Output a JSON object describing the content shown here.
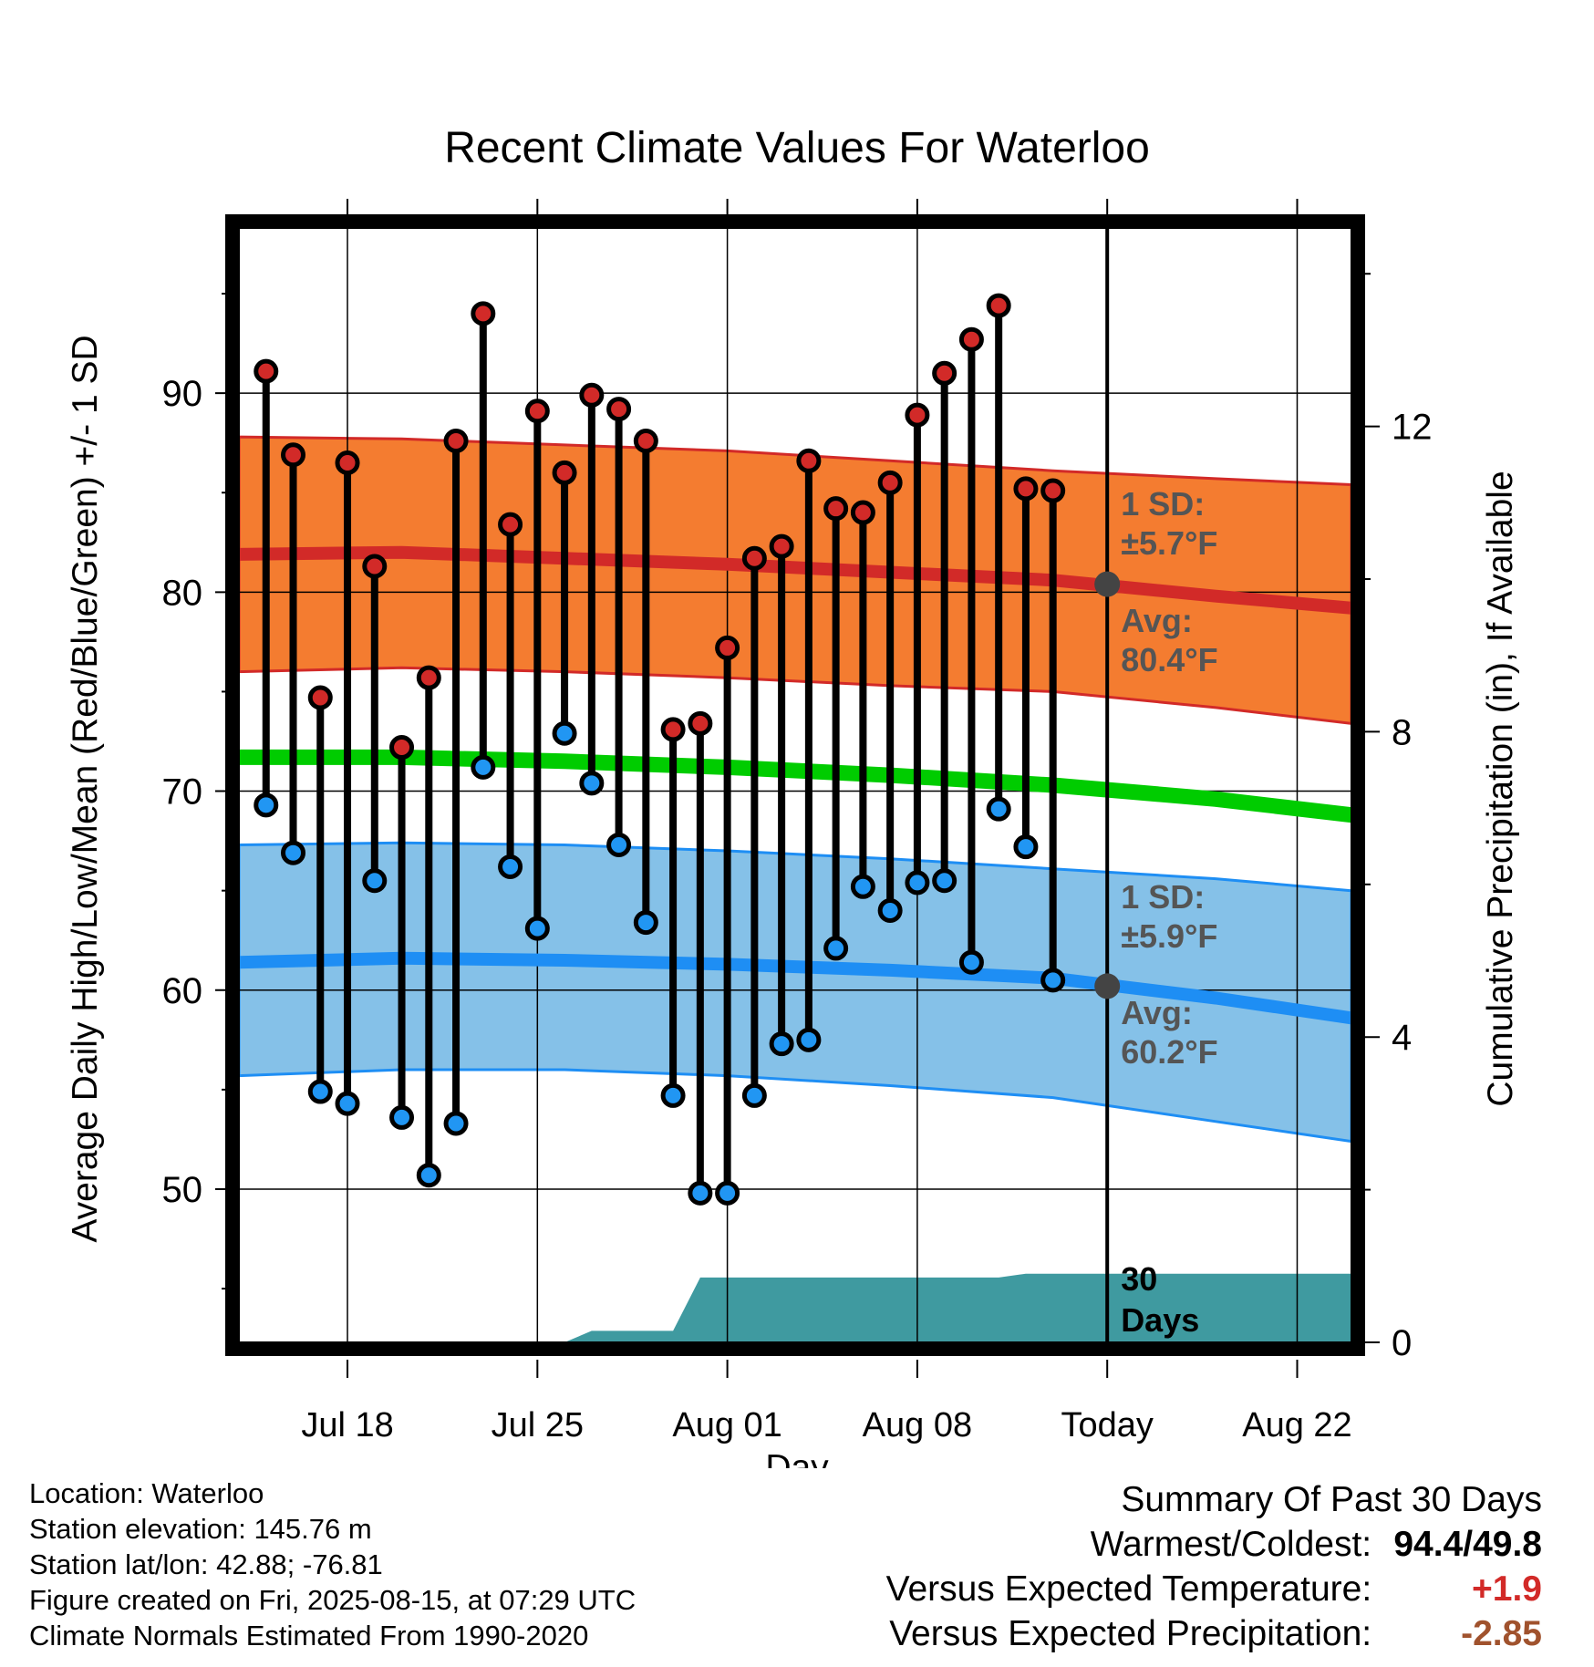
{
  "chart_data": {
    "type": "line",
    "title": "Recent Climate Values For Waterloo",
    "xlabel": "Day",
    "ylabel": "Average Daily High/Low/Mean (Red/Blue/Green) +/- 1 SD",
    "ylabel_right": "Cumulative Precipitation (in), If Available",
    "ylim": [
      42.3,
      98.3
    ],
    "ylim_right": [
      0,
      14.6
    ],
    "xlim": [
      "2025-07-14",
      "2025-08-24"
    ],
    "x_ticks": [
      {
        "date": "2025-07-18",
        "label": "Jul 18"
      },
      {
        "date": "2025-07-25",
        "label": "Jul 25"
      },
      {
        "date": "2025-08-01",
        "label": "Aug 01"
      },
      {
        "date": "2025-08-08",
        "label": "Aug 08"
      },
      {
        "date": "2025-08-15",
        "label": "Today"
      },
      {
        "date": "2025-08-22",
        "label": "Aug 22"
      }
    ],
    "y_ticks": [
      50,
      60,
      70,
      80,
      90
    ],
    "y_ticks_right": [
      0,
      4,
      8,
      12
    ],
    "grid": true,
    "colors": {
      "high_band": "#f47c30",
      "high_line": "#d22a28",
      "low_band": "#85c1e8",
      "low_line": "#1e8ef4",
      "mean_line": "#00cc00",
      "precip": "#3f9aa0",
      "high_dot": "#d22a28",
      "low_dot": "#2196f3",
      "today_dot": "#444444",
      "annotation": "#555555",
      "warm_value": "#d22a28",
      "precip_value": "#a0522d"
    },
    "normals": {
      "dates": [
        "2025-07-14",
        "2025-07-20",
        "2025-07-26",
        "2025-08-01",
        "2025-08-07",
        "2025-08-13",
        "2025-08-19",
        "2025-08-24"
      ],
      "high_mean": [
        81.9,
        82.0,
        81.7,
        81.4,
        81.0,
        80.6,
        79.8,
        79.2
      ],
      "high_upper": [
        87.8,
        87.7,
        87.4,
        87.1,
        86.6,
        86.1,
        85.7,
        85.4
      ],
      "high_lower": [
        76.0,
        76.2,
        76.0,
        75.7,
        75.3,
        75.0,
        74.2,
        73.4
      ],
      "avg_mean": [
        71.7,
        71.7,
        71.5,
        71.2,
        70.8,
        70.3,
        69.6,
        68.8
      ],
      "low_mean": [
        61.4,
        61.6,
        61.5,
        61.3,
        61.0,
        60.6,
        59.6,
        58.6
      ],
      "low_upper": [
        67.3,
        67.4,
        67.3,
        67.0,
        66.6,
        66.1,
        65.6,
        65.0
      ],
      "low_lower": [
        55.7,
        56.0,
        56.0,
        55.7,
        55.2,
        54.6,
        53.4,
        52.4
      ]
    },
    "series": [
      {
        "name": "High",
        "x": [
          "2025-07-15",
          "2025-07-16",
          "2025-07-17",
          "2025-07-18",
          "2025-07-19",
          "2025-07-20",
          "2025-07-21",
          "2025-07-22",
          "2025-07-23",
          "2025-07-24",
          "2025-07-25",
          "2025-07-26",
          "2025-07-27",
          "2025-07-28",
          "2025-07-29",
          "2025-07-30",
          "2025-07-31",
          "2025-08-01",
          "2025-08-02",
          "2025-08-03",
          "2025-08-04",
          "2025-08-05",
          "2025-08-06",
          "2025-08-07",
          "2025-08-08",
          "2025-08-09",
          "2025-08-10",
          "2025-08-11",
          "2025-08-12",
          "2025-08-13",
          "2025-08-14"
        ],
        "values": [
          91.1,
          86.9,
          74.7,
          86.5,
          81.3,
          72.2,
          75.7,
          87.6,
          94.0,
          83.4,
          89.1,
          86.0,
          89.9,
          89.2,
          87.6,
          73.1,
          73.4,
          77.2,
          81.7,
          82.3,
          86.6,
          84.2,
          84.0,
          85.5,
          88.9,
          91.0,
          92.7,
          94.4,
          85.2,
          85.1,
          null
        ]
      },
      {
        "name": "Low",
        "x": [
          "2025-07-15",
          "2025-07-16",
          "2025-07-17",
          "2025-07-18",
          "2025-07-19",
          "2025-07-20",
          "2025-07-21",
          "2025-07-22",
          "2025-07-23",
          "2025-07-24",
          "2025-07-25",
          "2025-07-26",
          "2025-07-27",
          "2025-07-28",
          "2025-07-29",
          "2025-07-30",
          "2025-07-31",
          "2025-08-01",
          "2025-08-02",
          "2025-08-03",
          "2025-08-04",
          "2025-08-05",
          "2025-08-06",
          "2025-08-07",
          "2025-08-08",
          "2025-08-09",
          "2025-08-10",
          "2025-08-11",
          "2025-08-12",
          "2025-08-13",
          "2025-08-14"
        ],
        "values": [
          69.3,
          66.9,
          54.9,
          54.3,
          65.5,
          53.6,
          50.7,
          53.3,
          71.2,
          66.2,
          63.1,
          72.9,
          70.4,
          67.3,
          63.4,
          54.7,
          49.8,
          49.8,
          54.7,
          57.3,
          57.5,
          62.1,
          65.2,
          64.0,
          65.4,
          65.5,
          61.4,
          69.1,
          67.2,
          60.5,
          null
        ]
      },
      {
        "name": "Cumulative Precipitation",
        "x": [
          "2025-07-15",
          "2025-07-24",
          "2025-07-26",
          "2025-07-27",
          "2025-07-30",
          "2025-07-31",
          "2025-08-01",
          "2025-08-11",
          "2025-08-12",
          "2025-08-24"
        ],
        "values": [
          0,
          0,
          0.0,
          0.15,
          0.15,
          0.85,
          0.85,
          0.85,
          0.9,
          0.9
        ]
      }
    ],
    "annotations": [
      {
        "line1": "1 SD:",
        "line2": "±5.7°F"
      },
      {
        "line1": "Avg:",
        "line2": "80.4°F",
        "value": 80.4
      },
      {
        "line1": "1 SD:",
        "line2": "±5.9°F"
      },
      {
        "line1": "Avg:",
        "line2": "60.2°F",
        "value": 60.2
      },
      {
        "line1": "30",
        "line2": "Days"
      }
    ],
    "today": "2025-08-15"
  },
  "footer": {
    "location": "Location: Waterloo",
    "elevation": "Station elevation: 145.76 m",
    "latlon": "Station lat/lon: 42.88; -76.81",
    "created": "Figure created on Fri, 2025-08-15, at 07:29 UTC",
    "normals": "Climate Normals Estimated From 1990-2020"
  },
  "summary": {
    "heading": "Summary Of Past 30 Days",
    "warm_label": "Warmest/Coldest:",
    "warm_value": "94.4/49.8",
    "temp_label": "Versus Expected Temperature:",
    "temp_value": "+1.9",
    "precip_label": "Versus Expected Precipitation:",
    "precip_value": "-2.85"
  }
}
